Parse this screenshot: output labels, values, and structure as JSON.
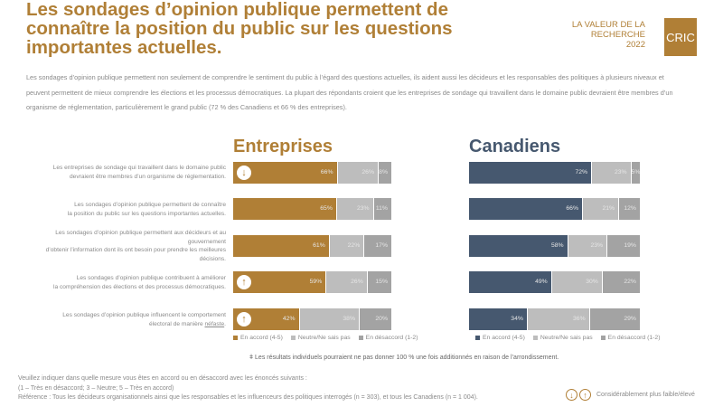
{
  "header": {
    "title": "Les sondages d’opinion publique permettent de connaître la position du public sur les questions importantes actuelles.",
    "brand_line1": "LA VALEUR DE LA",
    "brand_line2": "RECHERCHE",
    "brand_year": "2022",
    "logo": "CRIC"
  },
  "intro": "Les sondages d’opinion publique permettent non seulement de comprendre le sentiment du public à l’égard des questions actuelles, ils aident aussi les décideurs et les responsables des politiques à plusieurs niveaux et peuvent permettent de mieux comprendre les élections et les processus démocratiques. La plupart des répondants croient que les entreprises de sondage qui travaillent dans le domaine public devraient être membres d’un organisme de réglementation, particulièrement le grand public (72 % des Canadiens et 66 % des entreprises).",
  "colors": {
    "accent_gold": "#b07f36",
    "accent_navy": "#46586f",
    "neutral": "#bdbdbd",
    "disagree": "#a3a3a3"
  },
  "chart_data": {
    "type": "bar",
    "stacked": true,
    "orientation": "horizontal",
    "title": "Les sondages d’opinion publique permettent de connaître la position du public sur les questions importantes actuelles.",
    "categories": [
      "Les entreprises de sondage qui travaillent dans le domaine public devraient être membres d’un organisme de réglementation.",
      "Les sondages d’opinion publique permettent de connaître la position du public sur les questions importantes actuelles.",
      "Les sondages d’opinion publique permettent aux décideurs et au gouvernement d’obtenir l’information dont ils ont besoin pour prendre les meilleures décisions.",
      "Les sondages d’opinion publique contribuent à améliorer la compréhension des élections et des processus démocratiques.",
      "Les sondages d’opinion publique influencent le comportement électoral de manière néfaste."
    ],
    "panels": [
      {
        "name": "Entreprises",
        "series": [
          {
            "name": "En accord (4-5)",
            "values": [
              66,
              65,
              61,
              59,
              42
            ]
          },
          {
            "name": "Neutre/Ne sais pas",
            "values": [
              26,
              23,
              22,
              26,
              38
            ]
          },
          {
            "name": "En désaccord (1-2)",
            "values": [
              8,
              11,
              17,
              15,
              20
            ]
          }
        ],
        "significance": [
          "lower",
          null,
          null,
          "higher",
          "higher"
        ]
      },
      {
        "name": "Canadiens",
        "series": [
          {
            "name": "En accord (4-5)",
            "values": [
              72,
              66,
              58,
              49,
              34
            ]
          },
          {
            "name": "Neutre/Ne sais pas",
            "values": [
              23,
              21,
              23,
              30,
              36
            ]
          },
          {
            "name": "En désaccord (1-2)",
            "values": [
              5,
              12,
              19,
              22,
              29
            ]
          }
        ],
        "significance": [
          null,
          null,
          null,
          null,
          null
        ]
      }
    ],
    "unit": "%",
    "xlim": [
      0,
      100
    ],
    "legend": [
      "En accord (4-5)",
      "Neutre/Ne sais pas",
      "En désaccord (1-2)"
    ],
    "legend_position": "bottom"
  },
  "statements": [
    {
      "line1": "Les entreprises de sondage qui travaillent dans le domaine public",
      "line2": "devraient être membres d’un organisme de réglementation.",
      "line3": "",
      "line4": ""
    },
    {
      "line1": "Les sondages d’opinion publique permettent de connaître",
      "line2": "la position du public sur les questions importantes actuelles.",
      "line3": "",
      "line4": ""
    },
    {
      "line1": "Les sondages d’opinion publique permettent aux décideurs et au",
      "line2": "gouvernement",
      "line3": "d’obtenir l’information dont ils ont besoin pour prendre les meilleures",
      "line4": "décisions."
    },
    {
      "line1": "Les sondages d’opinion publique contribuent à améliorer",
      "line2": "la compréhension des élections et des processus démocratiques.",
      "line3": "",
      "line4": ""
    },
    {
      "line1": "Les sondages d’opinion publique influencent le comportement",
      "line2": "électoral de manière ",
      "underline": "néfaste",
      "line3": "",
      "line4": ""
    }
  ],
  "legend_labels": {
    "agree": "En accord (4-5)",
    "neutral": "Neutre/Ne sais pas",
    "disagree": "En désaccord (1-2)"
  },
  "note": "ǂ Les résultats individuels pourraient ne pas donner 100 % une fois additionnés en raison de l’arrondissement.",
  "footer": {
    "line1": "Veuillez indiquer dans quelle mesure vous êtes en accord ou en désaccord avec les énoncés suivants :",
    "line2": "(1 – Très en désaccord; 3 – Neutre; 5 – Très en accord)",
    "line3": "Référence : Tous les décideurs organisationnels ainsi que les responsables et les influenceurs des politiques interrogés (n = 303), et tous les Canadiens (n = 1 004)."
  },
  "significance_legend": {
    "down_icon": "↓",
    "up_icon": "↑",
    "label": "Considérablement plus faible/élevé"
  }
}
